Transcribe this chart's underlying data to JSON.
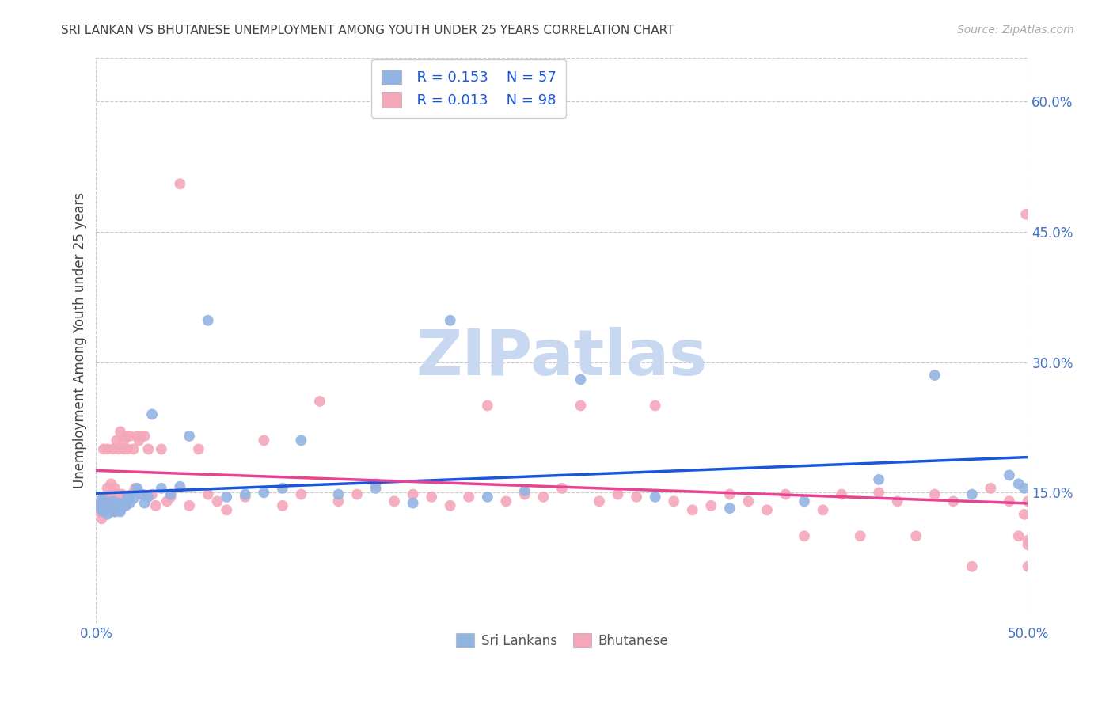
{
  "title": "SRI LANKAN VS BHUTANESE UNEMPLOYMENT AMONG YOUTH UNDER 25 YEARS CORRELATION CHART",
  "source": "Source: ZipAtlas.com",
  "ylabel": "Unemployment Among Youth under 25 years",
  "xlim": [
    0.0,
    0.5
  ],
  "ylim": [
    0.0,
    0.65
  ],
  "yticks": [
    0.15,
    0.3,
    0.45,
    0.6
  ],
  "ytick_labels": [
    "15.0%",
    "30.0%",
    "45.0%",
    "60.0%"
  ],
  "xticks": [
    0.0,
    0.1,
    0.2,
    0.3,
    0.4,
    0.5
  ],
  "xtick_labels": [
    "0.0%",
    "",
    "",
    "",
    "",
    "50.0%"
  ],
  "sri_lankans_color": "#92b4e3",
  "bhutanese_color": "#f4a7b9",
  "trendline_sri_color": "#1a56db",
  "trendline_bhu_color": "#e84393",
  "legend_r_sri": "R = 0.153",
  "legend_n_sri": "N = 57",
  "legend_r_bhu": "R = 0.013",
  "legend_n_bhu": "N = 98",
  "watermark": "ZIPatlas",
  "watermark_color": "#c8d8f0",
  "background_color": "#ffffff",
  "grid_color": "#c8c8c8",
  "title_color": "#444444",
  "tick_color": "#4472c4",
  "sri_lankans_x": [
    0.001,
    0.002,
    0.003,
    0.003,
    0.004,
    0.005,
    0.005,
    0.006,
    0.006,
    0.007,
    0.007,
    0.008,
    0.008,
    0.009,
    0.01,
    0.01,
    0.011,
    0.012,
    0.013,
    0.013,
    0.014,
    0.015,
    0.016,
    0.017,
    0.018,
    0.02,
    0.022,
    0.024,
    0.026,
    0.028,
    0.03,
    0.035,
    0.04,
    0.045,
    0.05,
    0.06,
    0.07,
    0.08,
    0.09,
    0.1,
    0.11,
    0.13,
    0.15,
    0.17,
    0.19,
    0.21,
    0.23,
    0.26,
    0.3,
    0.34,
    0.38,
    0.42,
    0.45,
    0.47,
    0.49,
    0.495,
    0.498
  ],
  "sri_lankans_y": [
    0.135,
    0.138,
    0.13,
    0.142,
    0.128,
    0.133,
    0.14,
    0.125,
    0.138,
    0.132,
    0.128,
    0.135,
    0.13,
    0.14,
    0.133,
    0.128,
    0.135,
    0.138,
    0.13,
    0.128,
    0.133,
    0.137,
    0.135,
    0.145,
    0.138,
    0.143,
    0.155,
    0.148,
    0.138,
    0.145,
    0.24,
    0.155,
    0.148,
    0.157,
    0.215,
    0.348,
    0.145,
    0.148,
    0.15,
    0.155,
    0.21,
    0.148,
    0.155,
    0.138,
    0.348,
    0.145,
    0.152,
    0.28,
    0.145,
    0.132,
    0.14,
    0.165,
    0.285,
    0.148,
    0.17,
    0.16,
    0.155
  ],
  "bhutanese_x": [
    0.001,
    0.002,
    0.003,
    0.003,
    0.004,
    0.004,
    0.005,
    0.005,
    0.006,
    0.006,
    0.007,
    0.007,
    0.008,
    0.008,
    0.009,
    0.009,
    0.01,
    0.01,
    0.011,
    0.011,
    0.012,
    0.012,
    0.013,
    0.014,
    0.015,
    0.015,
    0.016,
    0.017,
    0.018,
    0.019,
    0.02,
    0.021,
    0.022,
    0.023,
    0.024,
    0.025,
    0.026,
    0.028,
    0.03,
    0.032,
    0.035,
    0.038,
    0.04,
    0.045,
    0.05,
    0.055,
    0.06,
    0.065,
    0.07,
    0.08,
    0.09,
    0.1,
    0.11,
    0.12,
    0.13,
    0.14,
    0.15,
    0.16,
    0.17,
    0.18,
    0.19,
    0.2,
    0.21,
    0.22,
    0.23,
    0.24,
    0.25,
    0.26,
    0.27,
    0.28,
    0.29,
    0.3,
    0.31,
    0.32,
    0.33,
    0.34,
    0.35,
    0.36,
    0.37,
    0.38,
    0.39,
    0.4,
    0.41,
    0.42,
    0.43,
    0.44,
    0.45,
    0.46,
    0.47,
    0.48,
    0.49,
    0.495,
    0.498,
    0.499,
    0.5,
    0.5,
    0.5,
    0.5
  ],
  "bhutanese_y": [
    0.133,
    0.128,
    0.138,
    0.12,
    0.145,
    0.2,
    0.138,
    0.13,
    0.155,
    0.2,
    0.145,
    0.148,
    0.16,
    0.135,
    0.15,
    0.2,
    0.128,
    0.155,
    0.145,
    0.21,
    0.2,
    0.148,
    0.22,
    0.148,
    0.2,
    0.21,
    0.215,
    0.2,
    0.215,
    0.148,
    0.2,
    0.155,
    0.215,
    0.21,
    0.215,
    0.148,
    0.215,
    0.2,
    0.148,
    0.135,
    0.2,
    0.14,
    0.145,
    0.505,
    0.135,
    0.2,
    0.148,
    0.14,
    0.13,
    0.145,
    0.21,
    0.135,
    0.148,
    0.255,
    0.14,
    0.148,
    0.16,
    0.14,
    0.148,
    0.145,
    0.135,
    0.145,
    0.25,
    0.14,
    0.148,
    0.145,
    0.155,
    0.25,
    0.14,
    0.148,
    0.145,
    0.25,
    0.14,
    0.13,
    0.135,
    0.148,
    0.14,
    0.13,
    0.148,
    0.1,
    0.13,
    0.148,
    0.1,
    0.15,
    0.14,
    0.1,
    0.148,
    0.14,
    0.065,
    0.155,
    0.14,
    0.1,
    0.125,
    0.47,
    0.14,
    0.095,
    0.065,
    0.09
  ]
}
